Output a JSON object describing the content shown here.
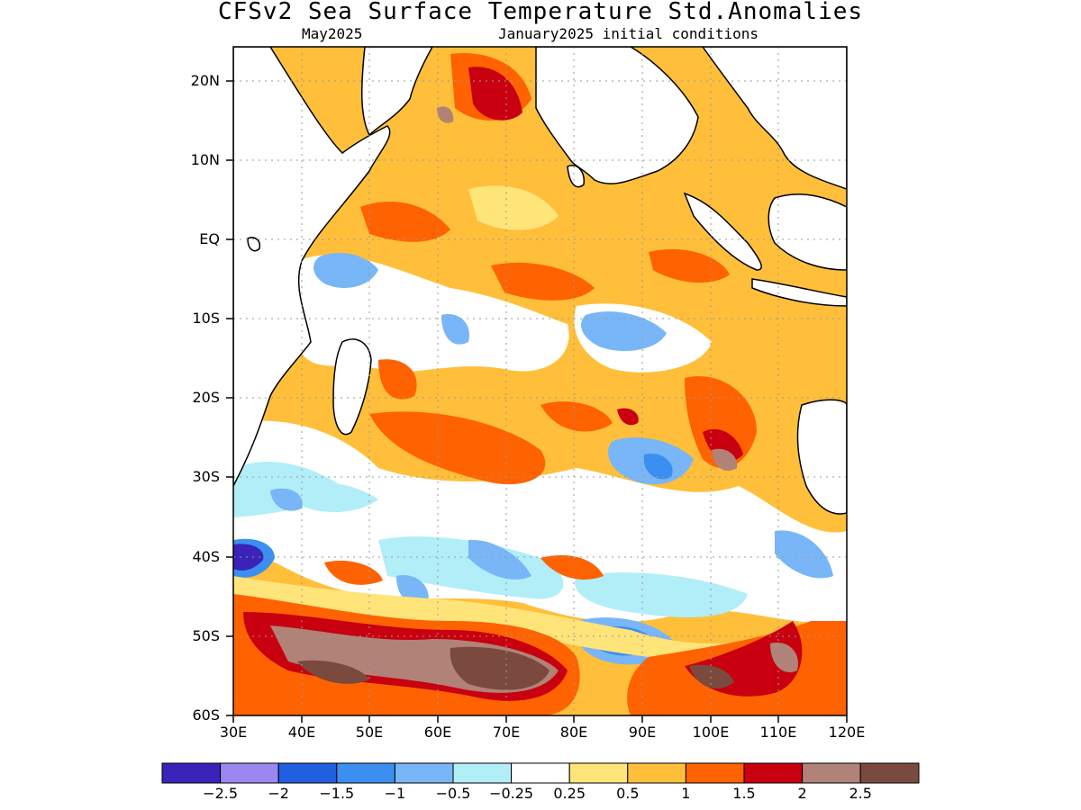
{
  "title": "CFSv2 Sea Surface Temperature Std.Anomalies",
  "subtitle_left": "May2025",
  "subtitle_right": "January2025 initial conditions",
  "lat_ticks": [
    "20N",
    "10N",
    "EQ",
    "10S",
    "20S",
    "30S",
    "40S",
    "50S",
    "60S"
  ],
  "lon_ticks": [
    "30E",
    "40E",
    "50E",
    "60E",
    "70E",
    "80E",
    "90E",
    "100E",
    "110E",
    "120E"
  ],
  "colorbar": {
    "colors": [
      "#3a23b8",
      "#9b87f0",
      "#1f5fe0",
      "#3a8ff0",
      "#78b6f7",
      "#b2eef8",
      "#ffffff",
      "#ffe47a",
      "#ffbf3a",
      "#ff6200",
      "#c8000f",
      "#b08278",
      "#7a4a3e"
    ],
    "labels": [
      "−2.5",
      "−2",
      "−1.5",
      "−1",
      "−0.5",
      "−0.25",
      "0.25",
      "0.5",
      "1",
      "1.5",
      "2",
      "2.5"
    ]
  }
}
